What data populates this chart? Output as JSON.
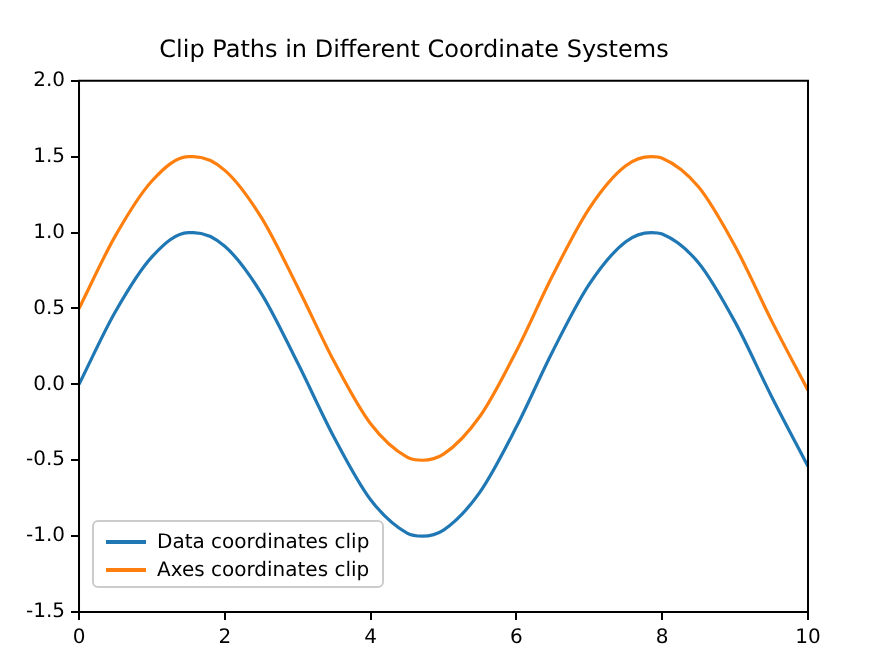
{
  "chart_data": {
    "type": "line",
    "title": "Clip Paths in Different Coordinate Systems",
    "x": [
      0,
      0.5,
      1,
      1.5,
      1.57,
      2,
      2.5,
      3,
      3.5,
      4,
      4.5,
      4.71,
      5,
      5.5,
      6,
      6.5,
      7,
      7.5,
      7.85,
      8,
      8.5,
      9,
      9.5,
      10
    ],
    "series": [
      {
        "name": "Data coordinates clip",
        "color": "#1f77b4",
        "values": [
          0,
          0.48,
          0.84,
          1.0,
          1.0,
          0.91,
          0.6,
          0.14,
          -0.35,
          -0.76,
          -0.98,
          -1.0,
          -0.96,
          -0.71,
          -0.28,
          0.22,
          0.66,
          0.94,
          1.0,
          0.99,
          0.8,
          0.41,
          -0.08,
          -0.54
        ]
      },
      {
        "name": "Axes coordinates clip",
        "color": "#ff7f0e",
        "values": [
          0.5,
          0.98,
          1.34,
          1.5,
          1.5,
          1.41,
          1.1,
          0.64,
          0.15,
          -0.26,
          -0.48,
          -0.5,
          -0.46,
          -0.21,
          0.22,
          0.72,
          1.16,
          1.44,
          1.5,
          1.49,
          1.3,
          0.91,
          0.42,
          -0.04
        ]
      }
    ],
    "xlim": [
      0,
      10
    ],
    "xticks": [
      0,
      2,
      4,
      6,
      8,
      10
    ],
    "ylim": [
      -1.5,
      2
    ],
    "yticks": [
      {
        "value": -1.5,
        "label": "-1.5"
      },
      {
        "value": -1,
        "label": "-1.0"
      },
      {
        "value": -0.5,
        "label": "-0.5"
      },
      {
        "value": 0,
        "label": "0.0"
      },
      {
        "value": 0.5,
        "label": "0.5"
      },
      {
        "value": 1,
        "label": "1.0"
      },
      {
        "value": 1.5,
        "label": "1.5"
      },
      {
        "value": 2,
        "label": "2.0"
      }
    ],
    "grid": false,
    "legend": "bottom left",
    "marker": "none",
    "line_style": "solid"
  }
}
